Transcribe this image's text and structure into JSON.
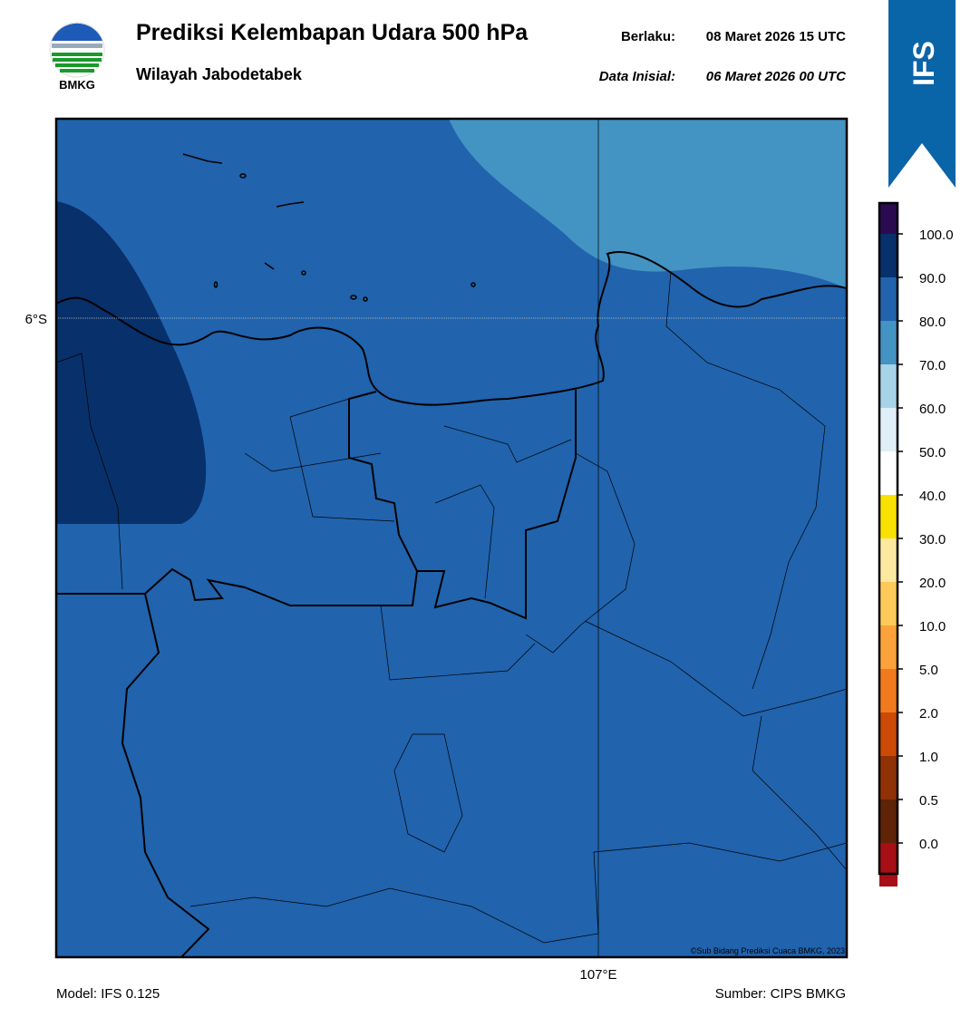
{
  "header": {
    "logo_text": "BMKG",
    "title": "Prediksi Kelembapan Udara 500 hPa",
    "subtitle": "Wilayah Jabodetabek",
    "valid_label": "Berlaku:",
    "valid_value": "08 Maret 2026 15 UTC",
    "init_label": "Data Inisial:",
    "init_value": "06 Maret 2026 00 UTC",
    "badge": "IFS"
  },
  "map": {
    "lat_label": "6°S",
    "lon_label": "107°E",
    "copyright": "©Sub Bidang Prediksi Cuaca BMKG, 2023"
  },
  "colorbar": {
    "colors": [
      "#2b0b50",
      "#08306b",
      "#2163ad",
      "#4393c3",
      "#a6d3e8",
      "#dfeef7",
      "#ffffff",
      "#f9e100",
      "#fde8a0",
      "#fdca5a",
      "#fba23a",
      "#f27a1e",
      "#cc4a06",
      "#8f3206",
      "#5f2308",
      "#a50f15",
      "#e23b2e"
    ],
    "labels": [
      "100.0",
      "90.0",
      "80.0",
      "70.0",
      "60.0",
      "50.0",
      "40.0",
      "30.0",
      "20.0",
      "10.0",
      "5.0",
      "2.0",
      "1.0",
      "0.5",
      "0.0"
    ]
  },
  "footer": {
    "model": "Model: IFS 0.125",
    "source": "Sumber: CIPS BMKG"
  }
}
